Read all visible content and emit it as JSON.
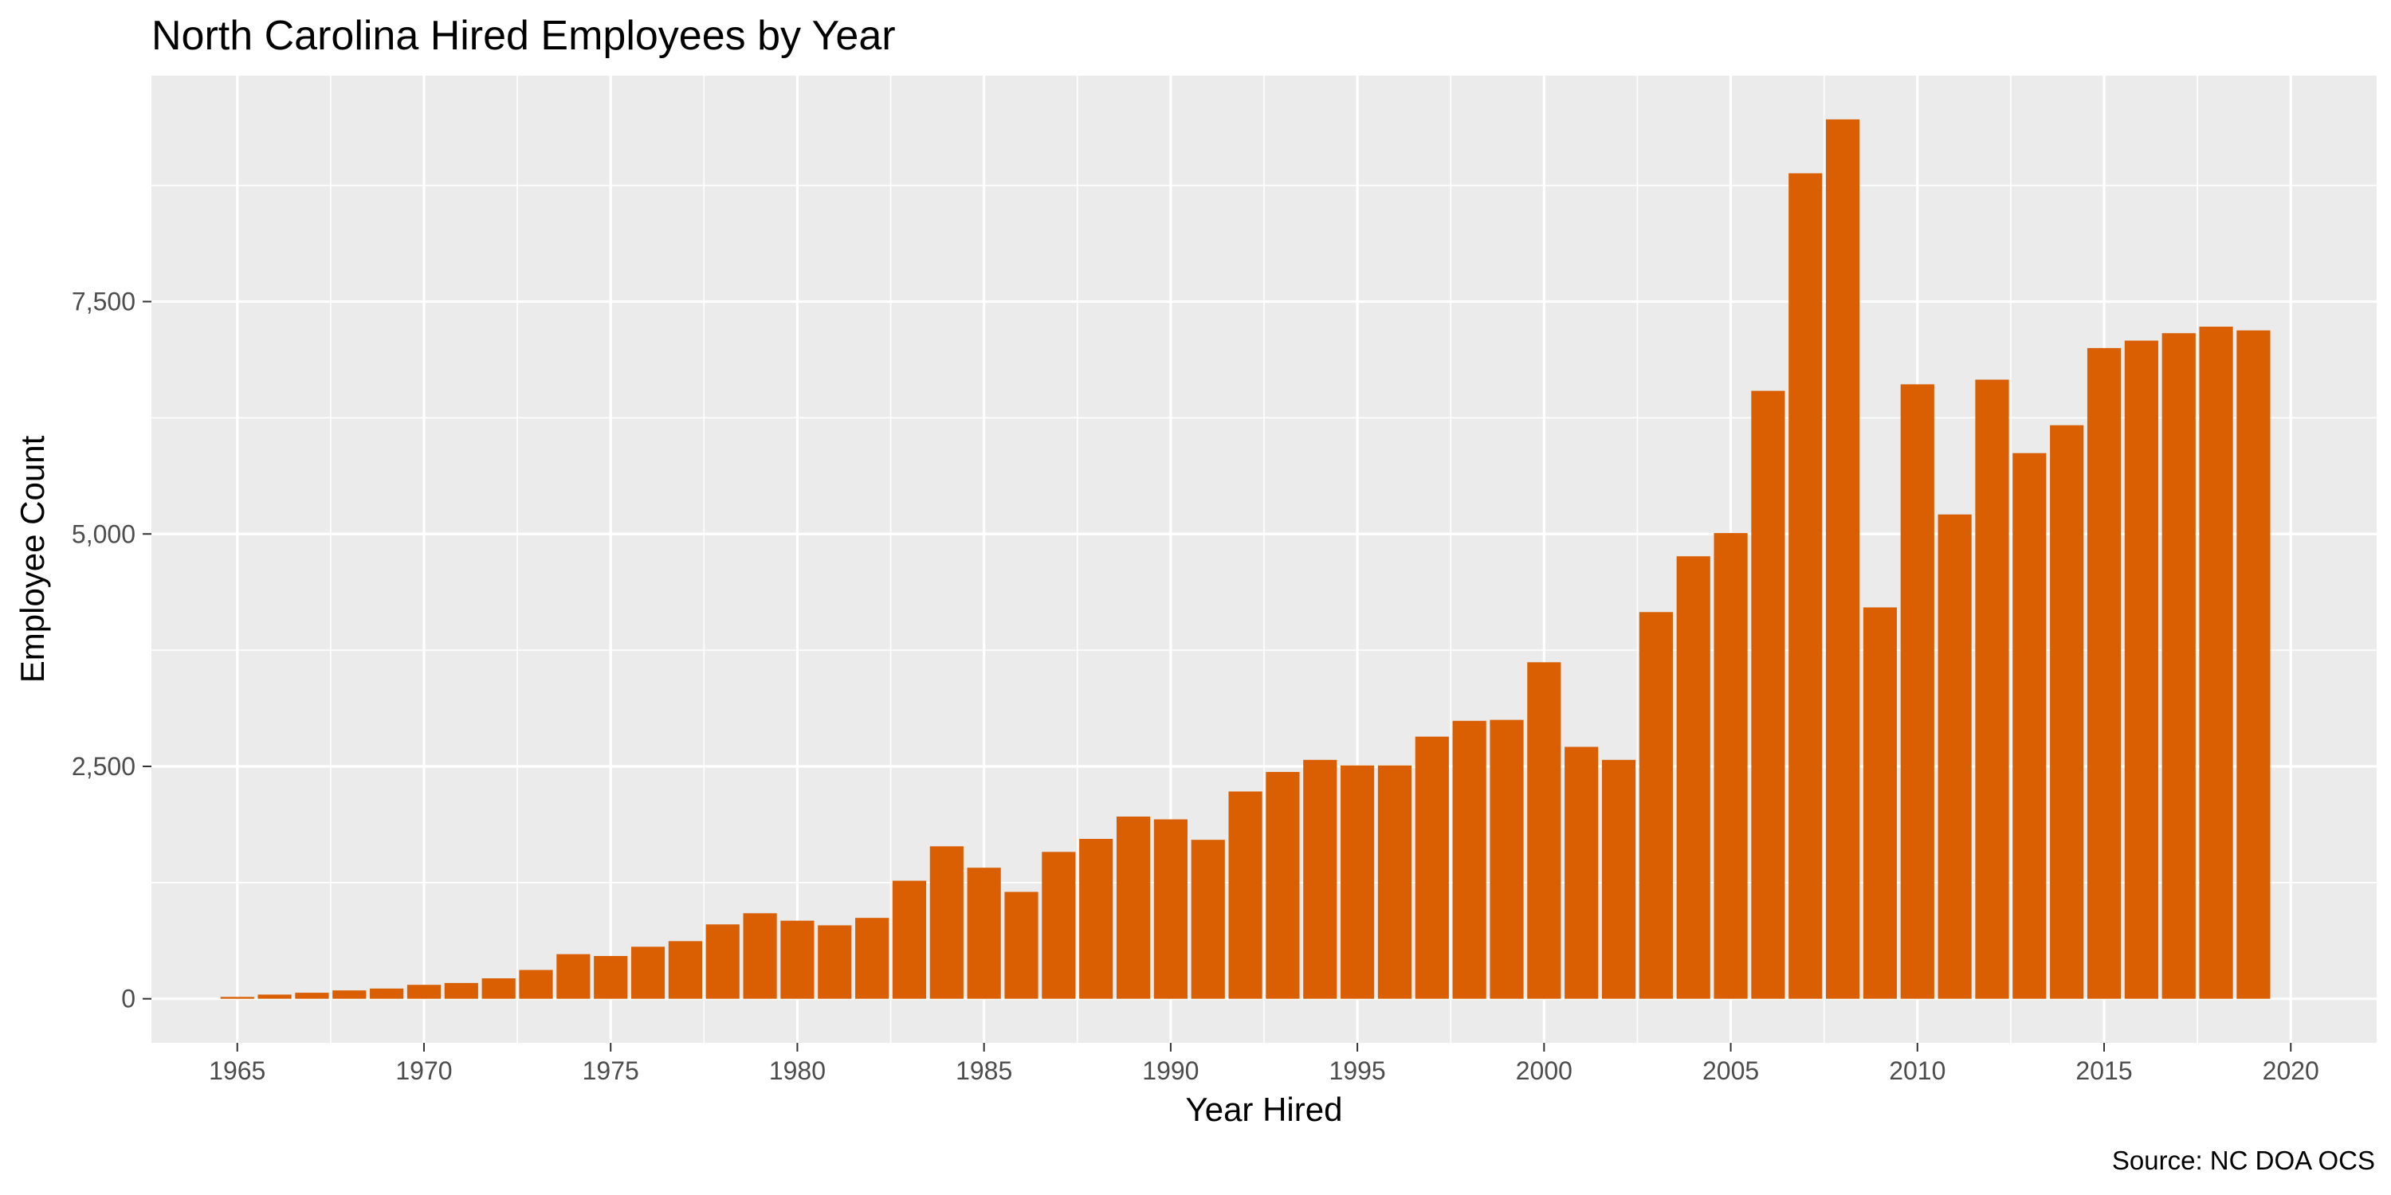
{
  "chart_data": {
    "type": "bar",
    "title": "North Carolina Hired Employees by Year",
    "xlabel": "Year Hired",
    "ylabel": "Employee Count",
    "caption": "Source: NC DOA OCS",
    "x": [
      1965,
      1966,
      1967,
      1968,
      1969,
      1970,
      1971,
      1972,
      1973,
      1974,
      1975,
      1976,
      1977,
      1978,
      1979,
      1980,
      1981,
      1982,
      1983,
      1984,
      1985,
      1986,
      1987,
      1988,
      1989,
      1990,
      1991,
      1992,
      1993,
      1994,
      1995,
      1996,
      1997,
      1998,
      1999,
      2000,
      2001,
      2002,
      2003,
      2004,
      2005,
      2006,
      2007,
      2008,
      2009,
      2010,
      2011,
      2012,
      2013,
      2014,
      2015,
      2016,
      2017,
      2018,
      2019
    ],
    "values": [
      20,
      45,
      65,
      90,
      110,
      150,
      170,
      220,
      310,
      480,
      460,
      560,
      620,
      800,
      920,
      840,
      790,
      870,
      1270,
      1640,
      1410,
      1150,
      1580,
      1720,
      1960,
      1930,
      1710,
      2230,
      2440,
      2570,
      2510,
      2510,
      2820,
      2990,
      3000,
      3620,
      2710,
      2570,
      4160,
      4760,
      5010,
      6540,
      8880,
      9460,
      4210,
      6610,
      5210,
      6660,
      5870,
      6170,
      7000,
      7080,
      7160,
      7230,
      7190
    ],
    "x_ticks": [
      "1965",
      "1970",
      "1975",
      "1980",
      "1985",
      "1990",
      "1995",
      "2000",
      "2005",
      "2010",
      "2015",
      "2020"
    ],
    "y_ticks": [
      "0",
      "2,500",
      "5,000",
      "7,500"
    ],
    "xlim": [
      1962.7,
      2022.3
    ],
    "ylim": [
      -474,
      9930
    ],
    "grid": true,
    "legend": "none",
    "colors": {
      "bar": "#d95f02",
      "panel": "#ebebeb",
      "grid": "#ffffff",
      "tick_text": "#4d4d4d"
    }
  }
}
